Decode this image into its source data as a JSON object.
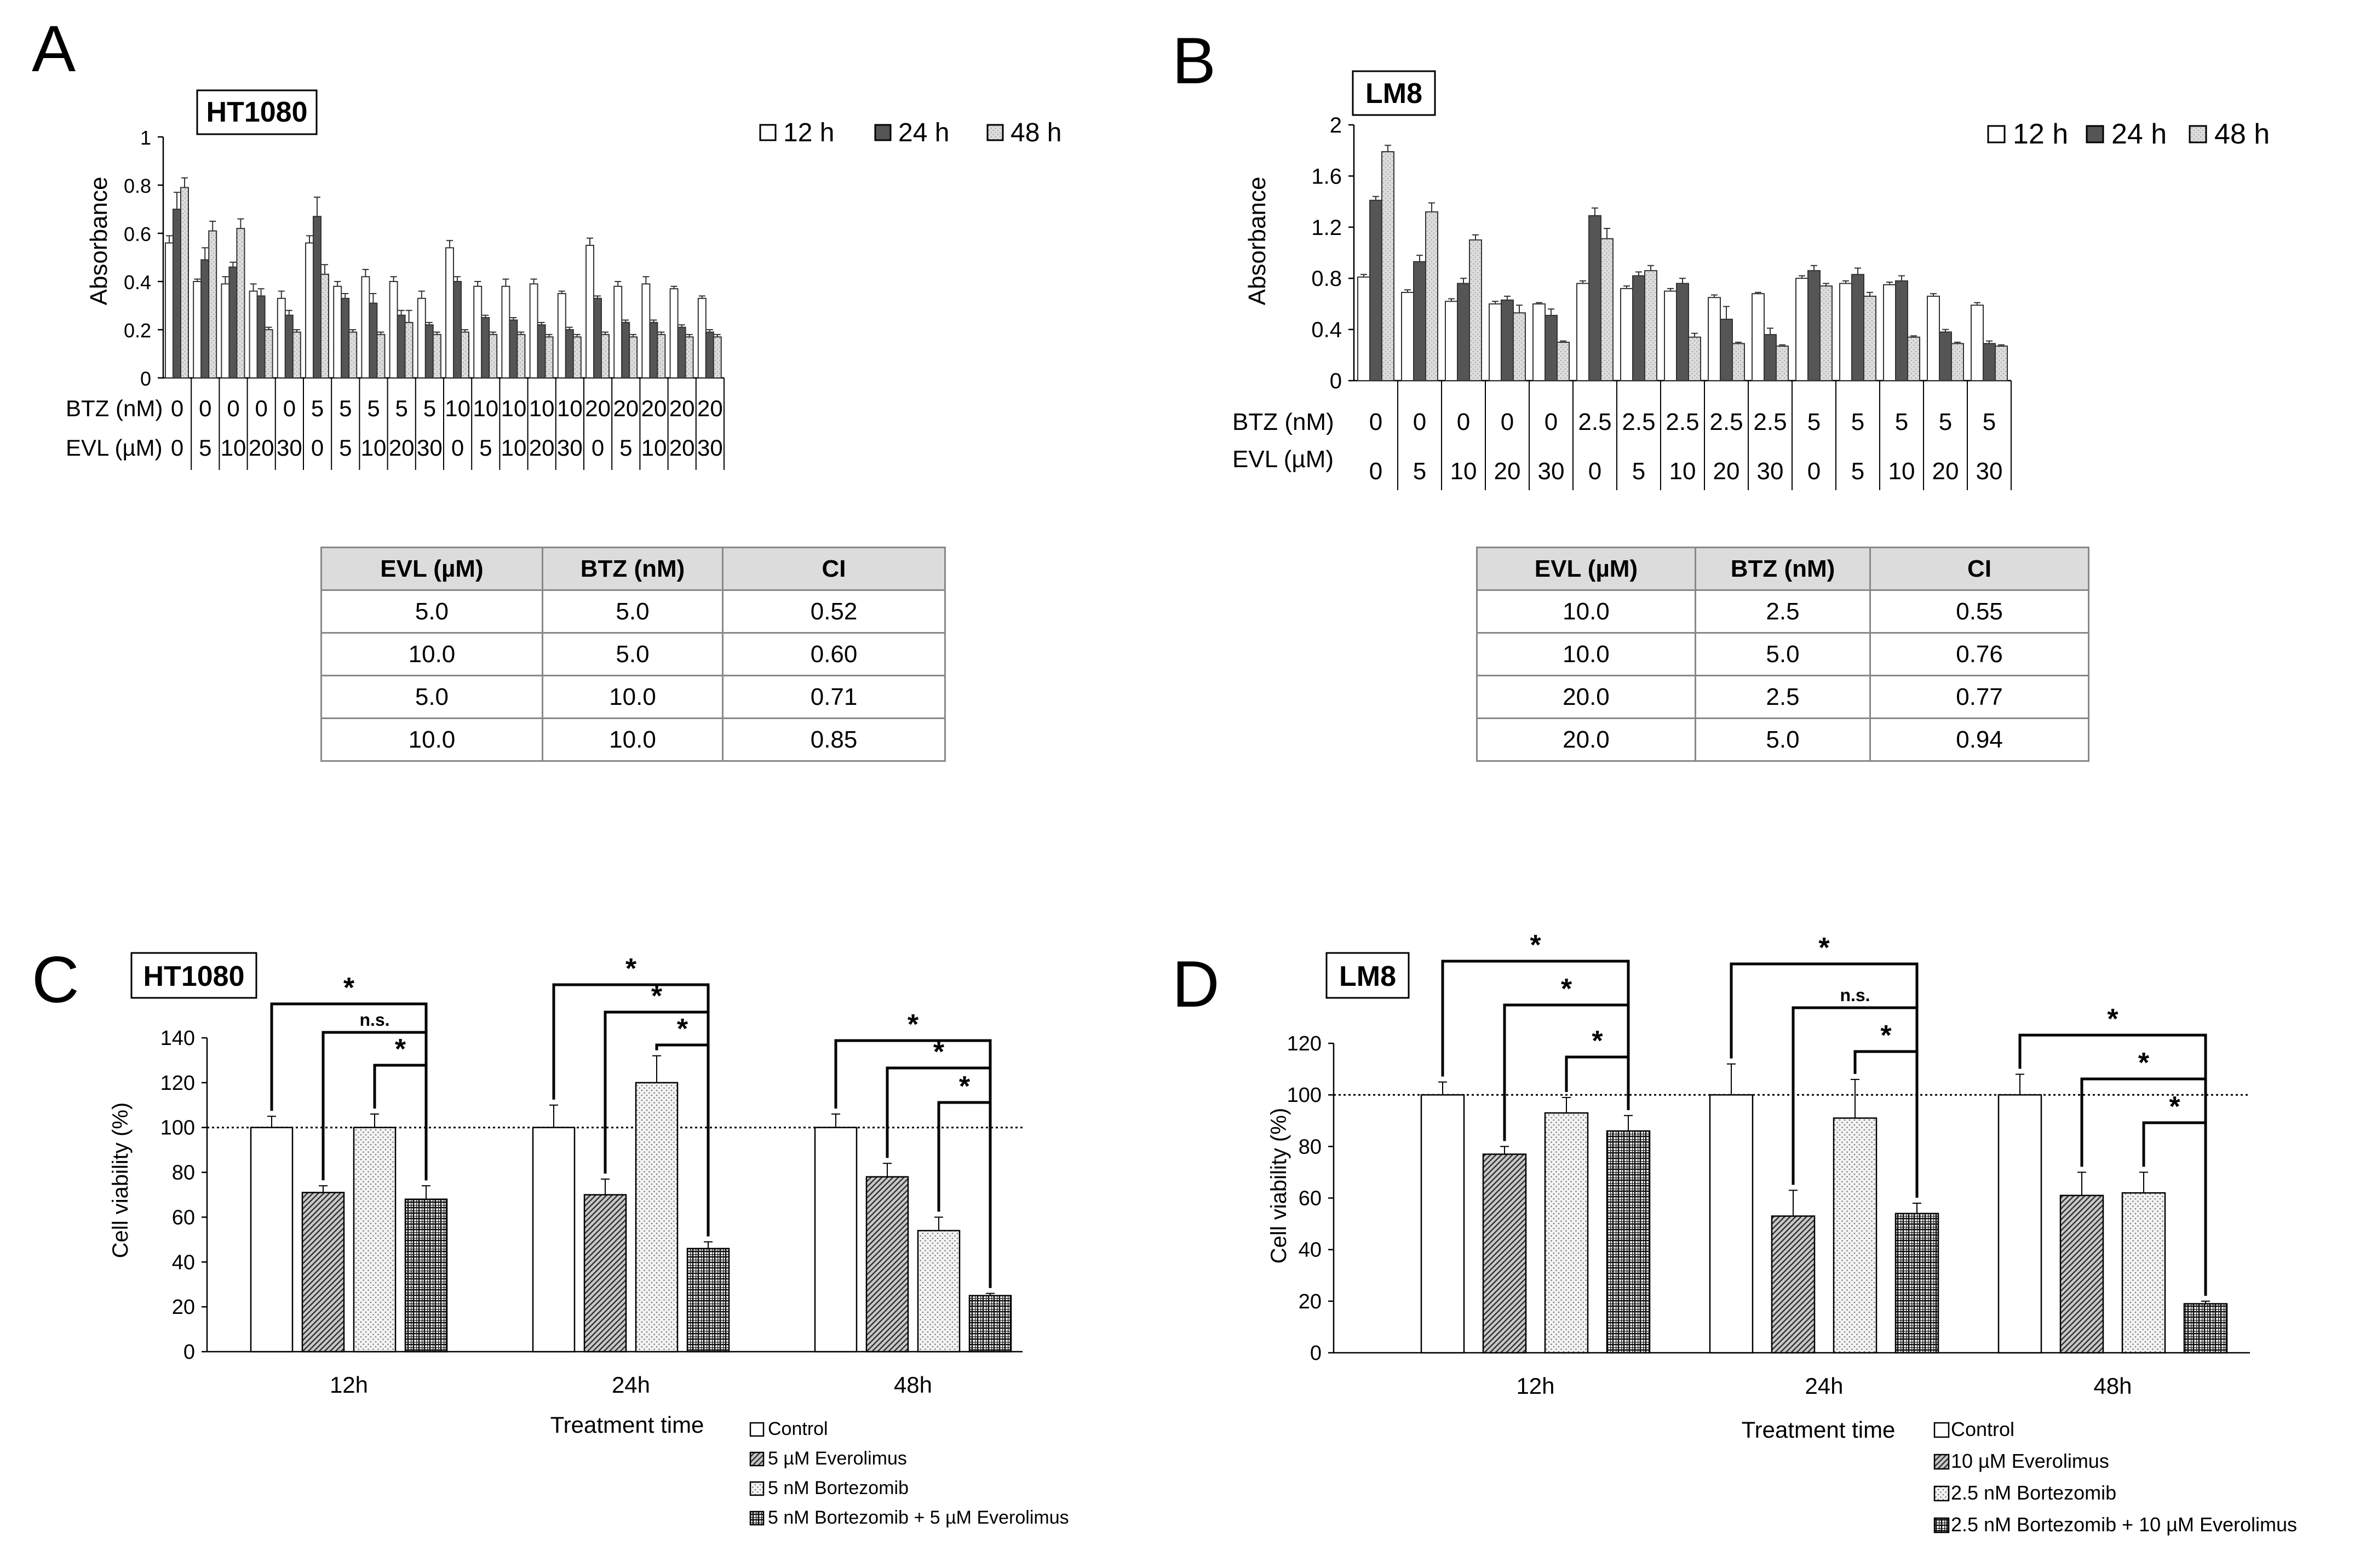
{
  "colors": {
    "white": "#ffffff",
    "dark": "#555555",
    "light": "#d8d8d8",
    "table_header": "#dcdcdc",
    "border": "#888888"
  },
  "chart_data": [
    {
      "panel": "A",
      "type": "bar",
      "title": "HT1080",
      "ylabel": "Absorbance",
      "ylim": [
        0,
        1
      ],
      "yticks": [
        0,
        0.2,
        0.4,
        0.6,
        0.8,
        1
      ],
      "row_labels": [
        "BTZ (nM)",
        "EVL (µM)"
      ],
      "btz": [
        "0",
        "0",
        "0",
        "0",
        "0",
        "5",
        "5",
        "5",
        "5",
        "5",
        "10",
        "10",
        "10",
        "10",
        "10",
        "20",
        "20",
        "20",
        "20",
        "20"
      ],
      "evl": [
        "0",
        "5",
        "10",
        "20",
        "30",
        "0",
        "5",
        "10",
        "20",
        "30",
        "0",
        "5",
        "10",
        "20",
        "30",
        "0",
        "5",
        "10",
        "20",
        "30"
      ],
      "legend": [
        "12 h",
        "24 h",
        "48 h"
      ],
      "series": [
        {
          "name": "12 h",
          "values": [
            0.56,
            0.4,
            0.39,
            0.36,
            0.33,
            0.56,
            0.38,
            0.42,
            0.4,
            0.33,
            0.54,
            0.38,
            0.38,
            0.39,
            0.35,
            0.55,
            0.38,
            0.39,
            0.37,
            0.33
          ],
          "err": [
            0.03,
            0.01,
            0.03,
            0.03,
            0.03,
            0.03,
            0.02,
            0.03,
            0.02,
            0.03,
            0.03,
            0.02,
            0.03,
            0.02,
            0.01,
            0.03,
            0.02,
            0.03,
            0.01,
            0.01
          ]
        },
        {
          "name": "24 h",
          "values": [
            0.7,
            0.49,
            0.46,
            0.34,
            0.26,
            0.67,
            0.33,
            0.31,
            0.26,
            0.22,
            0.4,
            0.25,
            0.24,
            0.22,
            0.2,
            0.33,
            0.23,
            0.23,
            0.21,
            0.19
          ],
          "err": [
            0.07,
            0.05,
            0.02,
            0.03,
            0.02,
            0.08,
            0.02,
            0.04,
            0.02,
            0.01,
            0.02,
            0.01,
            0.01,
            0.01,
            0.01,
            0.01,
            0.01,
            0.01,
            0.01,
            0.01
          ]
        },
        {
          "name": "48 h",
          "values": [
            0.79,
            0.61,
            0.62,
            0.2,
            0.19,
            0.43,
            0.19,
            0.18,
            0.23,
            0.18,
            0.19,
            0.18,
            0.18,
            0.17,
            0.17,
            0.18,
            0.17,
            0.18,
            0.17,
            0.17
          ],
          "err": [
            0.04,
            0.04,
            0.04,
            0.01,
            0.01,
            0.04,
            0.01,
            0.01,
            0.05,
            0.01,
            0.01,
            0.01,
            0.01,
            0.01,
            0.01,
            0.01,
            0.01,
            0.01,
            0.01,
            0.01
          ]
        }
      ]
    },
    {
      "panel": "B",
      "type": "bar",
      "title": "LM8",
      "ylabel": "Absorbance",
      "ylim": [
        0,
        2
      ],
      "yticks": [
        0,
        0.4,
        0.8,
        1.2,
        1.6,
        2
      ],
      "row_labels": [
        "BTZ (nM)",
        "EVL (µM)"
      ],
      "btz": [
        "0",
        "0",
        "0",
        "0",
        "0",
        "2.5",
        "2.5",
        "2.5",
        "2.5",
        "2.5",
        "5",
        "5",
        "5",
        "5",
        "5"
      ],
      "evl": [
        "0",
        "5",
        "10",
        "20",
        "30",
        "0",
        "5",
        "10",
        "20",
        "30",
        "0",
        "5",
        "10",
        "20",
        "30"
      ],
      "legend": [
        "12 h",
        "24 h",
        "48 h"
      ],
      "series": [
        {
          "name": "12 h",
          "values": [
            0.81,
            0.69,
            0.62,
            0.6,
            0.6,
            0.76,
            0.72,
            0.7,
            0.65,
            0.68,
            0.8,
            0.76,
            0.75,
            0.66,
            0.59
          ],
          "err": [
            0.02,
            0.02,
            0.02,
            0.02,
            0.01,
            0.02,
            0.02,
            0.02,
            0.02,
            0.01,
            0.02,
            0.02,
            0.02,
            0.02,
            0.02
          ]
        },
        {
          "name": "24 h",
          "values": [
            1.41,
            0.93,
            0.76,
            0.63,
            0.51,
            1.29,
            0.82,
            0.76,
            0.48,
            0.36,
            0.86,
            0.83,
            0.78,
            0.38,
            0.29
          ],
          "err": [
            0.03,
            0.05,
            0.04,
            0.03,
            0.05,
            0.06,
            0.03,
            0.04,
            0.1,
            0.05,
            0.04,
            0.05,
            0.04,
            0.02,
            0.02
          ]
        },
        {
          "name": "48 h",
          "values": [
            1.79,
            1.32,
            1.1,
            0.53,
            0.3,
            1.11,
            0.86,
            0.34,
            0.29,
            0.27,
            0.74,
            0.66,
            0.34,
            0.29,
            0.27
          ],
          "err": [
            0.05,
            0.07,
            0.04,
            0.06,
            0.01,
            0.08,
            0.04,
            0.03,
            0.01,
            0.01,
            0.02,
            0.03,
            0.01,
            0.01,
            0.01
          ]
        }
      ]
    },
    {
      "panel": "C",
      "type": "bar",
      "title": "HT1080",
      "ylabel": "Cell viability (%)",
      "xlabel": "Treatment time",
      "ylim": [
        0,
        140
      ],
      "yticks": [
        0,
        20,
        40,
        60,
        80,
        100,
        120,
        140
      ],
      "categories": [
        "12h",
        "24h",
        "48h"
      ],
      "legend": [
        "Control",
        "5 µM Everolimus",
        "5 nM Bortezomib",
        "5 nM Bortezomib + 5 µM Everolimus"
      ],
      "series": [
        {
          "name": "Control",
          "values": [
            100,
            100,
            100
          ],
          "err": [
            5,
            10,
            6
          ]
        },
        {
          "name": "5 µM Everolimus",
          "values": [
            71,
            70,
            78
          ],
          "err": [
            3,
            7,
            6
          ]
        },
        {
          "name": "5 nM Bortezomib",
          "values": [
            100,
            120,
            54
          ],
          "err": [
            6,
            12,
            6
          ]
        },
        {
          "name": "5 nM Bortezomib + 5 µM Everolimus",
          "values": [
            68,
            46,
            25
          ],
          "err": [
            6,
            3,
            1
          ]
        }
      ],
      "significance": [
        [
          "*",
          "n.s.",
          "*"
        ],
        [
          "*",
          "*",
          "*"
        ],
        [
          "*",
          "*",
          "*"
        ]
      ]
    },
    {
      "panel": "D",
      "type": "bar",
      "title": "LM8",
      "ylabel": "Cell viability (%)",
      "xlabel": "Treatment time",
      "ylim": [
        0,
        120
      ],
      "yticks": [
        0,
        20,
        40,
        60,
        80,
        100,
        120
      ],
      "categories": [
        "12h",
        "24h",
        "48h"
      ],
      "legend": [
        "Control",
        "10 µM Everolimus",
        "2.5 nM Bortezomib",
        "2.5 nM Bortezomib + 10 µM Everolimus"
      ],
      "series": [
        {
          "name": "Control",
          "values": [
            100,
            100,
            100
          ],
          "err": [
            5,
            12,
            8
          ]
        },
        {
          "name": "10 µM Everolimus",
          "values": [
            77,
            53,
            61
          ],
          "err": [
            3,
            10,
            9
          ]
        },
        {
          "name": "2.5 nM Bortezomib",
          "values": [
            93,
            91,
            62
          ],
          "err": [
            6,
            15,
            8
          ]
        },
        {
          "name": "2.5 nM Bortezomib + 10 µM Everolimus",
          "values": [
            86,
            54,
            19
          ],
          "err": [
            6,
            4,
            1
          ]
        }
      ],
      "significance": [
        [
          "*",
          "*",
          "*"
        ],
        [
          "*",
          "n.s.",
          "*"
        ],
        [
          "*",
          "*",
          "*"
        ]
      ]
    }
  ],
  "tables": [
    {
      "panel": "A",
      "headers": [
        "EVL (µM)",
        "BTZ (nM)",
        "CI"
      ],
      "rows": [
        [
          "5.0",
          "5.0",
          "0.52"
        ],
        [
          "10.0",
          "5.0",
          "0.60"
        ],
        [
          "5.0",
          "10.0",
          "0.71"
        ],
        [
          "10.0",
          "10.0",
          "0.85"
        ]
      ]
    },
    {
      "panel": "B",
      "headers": [
        "EVL (µM)",
        "BTZ (nM)",
        "CI"
      ],
      "rows": [
        [
          "10.0",
          "2.5",
          "0.55"
        ],
        [
          "10.0",
          "5.0",
          "0.76"
        ],
        [
          "20.0",
          "2.5",
          "0.77"
        ],
        [
          "20.0",
          "5.0",
          "0.94"
        ]
      ]
    }
  ]
}
